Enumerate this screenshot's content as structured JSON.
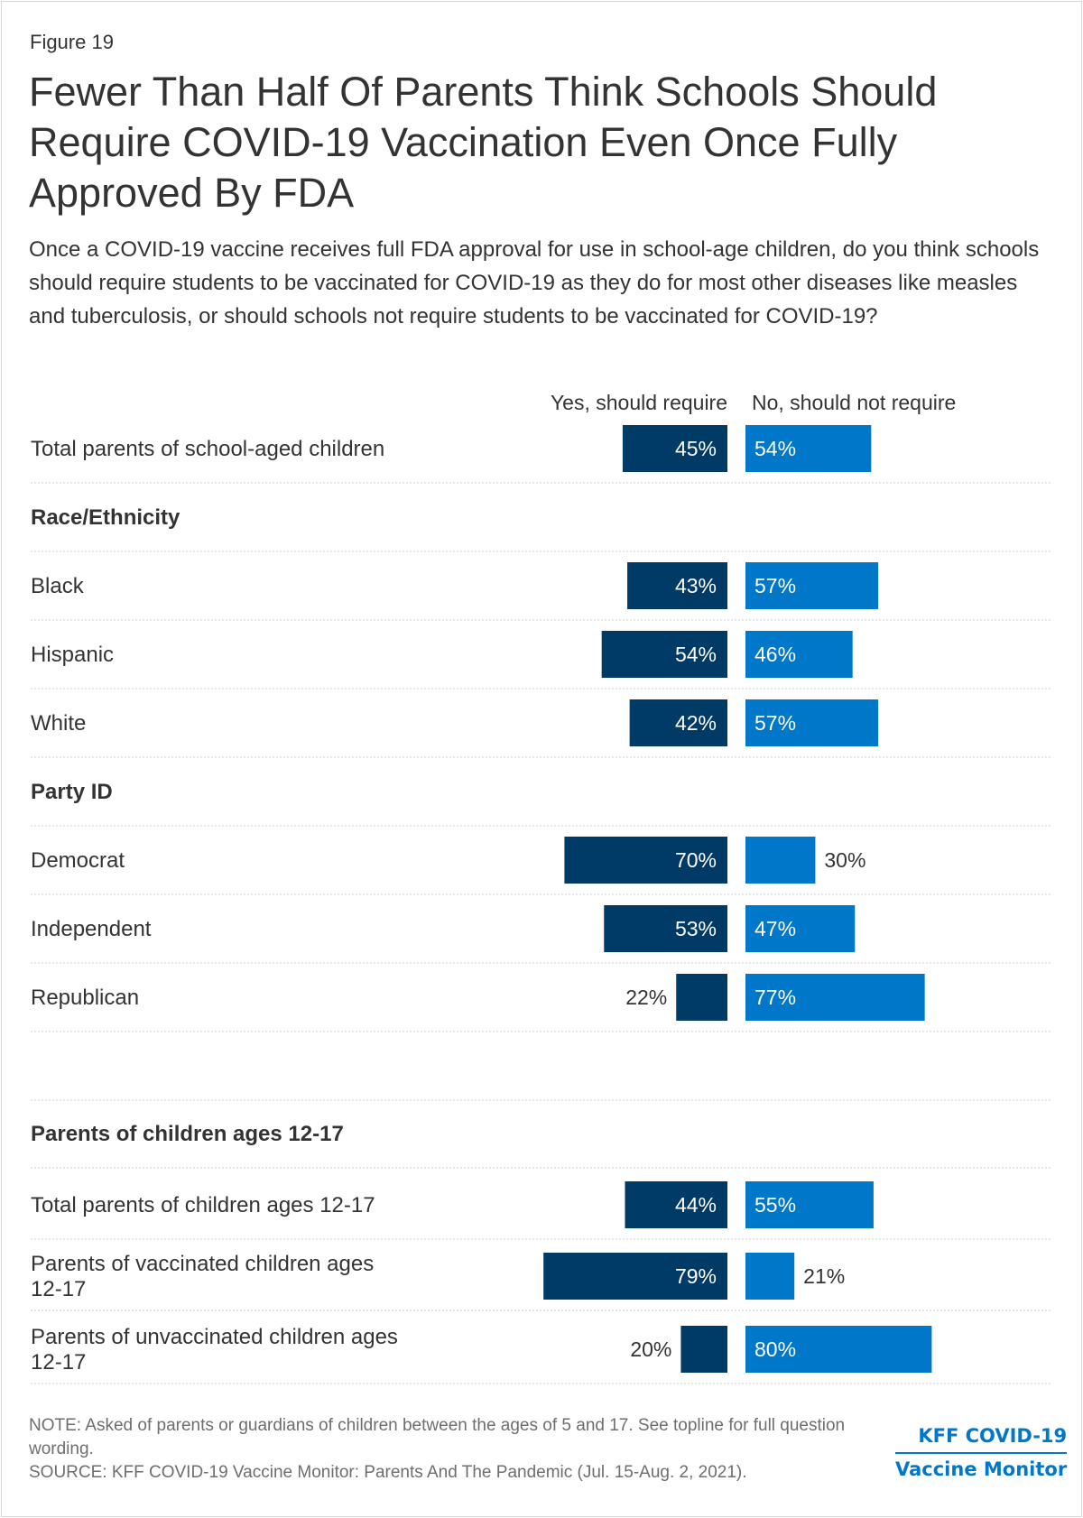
{
  "figure_label": "Figure 19",
  "title": "Fewer Than Half Of Parents Think Schools Should Require COVID-19 Vaccination Even Once Fully Approved By FDA",
  "subtitle": "Once a COVID-19 vaccine receives full FDA approval for use in school-age children, do you think schools should require students to be vaccinated for COVID-19 as they do for most other diseases like measles and tuberculosis, or should schools not require students to be vaccinated for COVID-19?",
  "colors": {
    "yes": "#003a66",
    "no": "#0077c8",
    "text": "#333333",
    "note": "#6e6e6e",
    "grid": "#cccccc"
  },
  "chart_data": {
    "type": "bar",
    "orientation": "horizontal-diverging",
    "series": [
      {
        "name": "Yes, should require",
        "color": "#003a66"
      },
      {
        "name": "No, should not require",
        "color": "#0077c8"
      }
    ],
    "rows": [
      {
        "kind": "item",
        "label": "Total parents of school-aged children",
        "yes": 45,
        "no": 54
      },
      {
        "kind": "header",
        "label": "Race/Ethnicity"
      },
      {
        "kind": "item",
        "label": "Black",
        "yes": 43,
        "no": 57
      },
      {
        "kind": "item",
        "label": "Hispanic",
        "yes": 54,
        "no": 46
      },
      {
        "kind": "item",
        "label": "White",
        "yes": 42,
        "no": 57
      },
      {
        "kind": "header",
        "label": "Party ID"
      },
      {
        "kind": "item",
        "label": "Democrat",
        "yes": 70,
        "no": 30
      },
      {
        "kind": "item",
        "label": "Independent",
        "yes": 53,
        "no": 47
      },
      {
        "kind": "item",
        "label": "Republican",
        "yes": 22,
        "no": 77
      },
      {
        "kind": "spacer"
      },
      {
        "kind": "header",
        "label": "Parents of children ages 12-17"
      },
      {
        "kind": "item",
        "label": "Total parents of children ages 12-17",
        "yes": 44,
        "no": 55
      },
      {
        "kind": "item",
        "label": "Parents of vaccinated children ages 12-17",
        "yes": 79,
        "no": 21
      },
      {
        "kind": "item",
        "label": "Parents of unvaccinated children ages 12-17",
        "yes": 20,
        "no": 80
      }
    ],
    "value_suffix": "%",
    "xlim": [
      0,
      100
    ]
  },
  "note": "NOTE: Asked of parents or guardians of children between the ages of 5 and 17. See topline for full question wording.",
  "source": "SOURCE: KFF COVID-19 Vaccine Monitor: Parents And The Pandemic (Jul. 15-Aug. 2, 2021).",
  "logo": {
    "line1": "KFF COVID-19",
    "line2": "Vaccine Monitor"
  }
}
